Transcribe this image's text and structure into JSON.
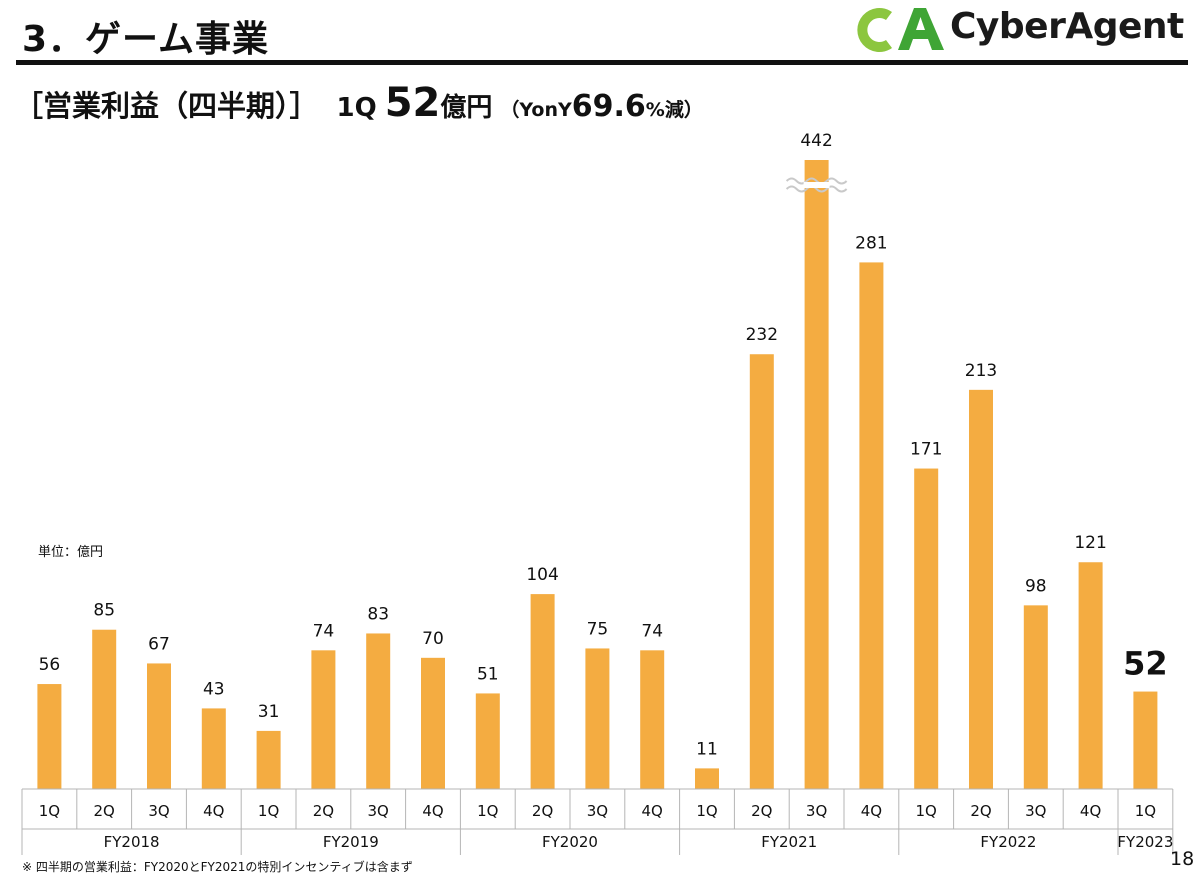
{
  "page": {
    "title": "3．ゲーム事業",
    "logo_text": "CyberAgent",
    "logo_mark": "CA",
    "headline_label": "［営業利益（四半期）］",
    "headline_quarter": "1Q",
    "headline_value": "52",
    "headline_unit": "億円",
    "headline_paren_open": "（YonY",
    "headline_change": "69.6",
    "headline_change_suffix": "%減）",
    "unit_label": "単位：億円",
    "footnote": "※ 四半期の営業利益：FY2020とFY2021の特別インセンティブは含まず",
    "page_number": "18",
    "colors": {
      "bar": "#F4AC41",
      "logo_green_light": "#8CC63F",
      "logo_green_dark": "#3FA535"
    }
  },
  "chart_data": {
    "type": "bar",
    "title": "",
    "xlabel": "",
    "ylabel": "",
    "unit": "億円",
    "axis_break_on": "FY2021 3Q",
    "grid": false,
    "categories": [
      {
        "quarter": "1Q",
        "year": "FY2018",
        "value": 56
      },
      {
        "quarter": "2Q",
        "year": "FY2018",
        "value": 85
      },
      {
        "quarter": "3Q",
        "year": "FY2018",
        "value": 67
      },
      {
        "quarter": "4Q",
        "year": "FY2018",
        "value": 43
      },
      {
        "quarter": "1Q",
        "year": "FY2019",
        "value": 31
      },
      {
        "quarter": "2Q",
        "year": "FY2019",
        "value": 74
      },
      {
        "quarter": "3Q",
        "year": "FY2019",
        "value": 83
      },
      {
        "quarter": "4Q",
        "year": "FY2019",
        "value": 70
      },
      {
        "quarter": "1Q",
        "year": "FY2020",
        "value": 51
      },
      {
        "quarter": "2Q",
        "year": "FY2020",
        "value": 104
      },
      {
        "quarter": "3Q",
        "year": "FY2020",
        "value": 75
      },
      {
        "quarter": "4Q",
        "year": "FY2020",
        "value": 74
      },
      {
        "quarter": "1Q",
        "year": "FY2021",
        "value": 11
      },
      {
        "quarter": "2Q",
        "year": "FY2021",
        "value": 232
      },
      {
        "quarter": "3Q",
        "year": "FY2021",
        "value": 442
      },
      {
        "quarter": "4Q",
        "year": "FY2021",
        "value": 281
      },
      {
        "quarter": "1Q",
        "year": "FY2022",
        "value": 171
      },
      {
        "quarter": "2Q",
        "year": "FY2022",
        "value": 213
      },
      {
        "quarter": "3Q",
        "year": "FY2022",
        "value": 98
      },
      {
        "quarter": "4Q",
        "year": "FY2022",
        "value": 121
      },
      {
        "quarter": "1Q",
        "year": "FY2023",
        "value": 52
      }
    ],
    "years": [
      "FY2018",
      "FY2019",
      "FY2020",
      "FY2021",
      "FY2022",
      "FY2023"
    ],
    "ylim": [
      0,
      300
    ]
  }
}
